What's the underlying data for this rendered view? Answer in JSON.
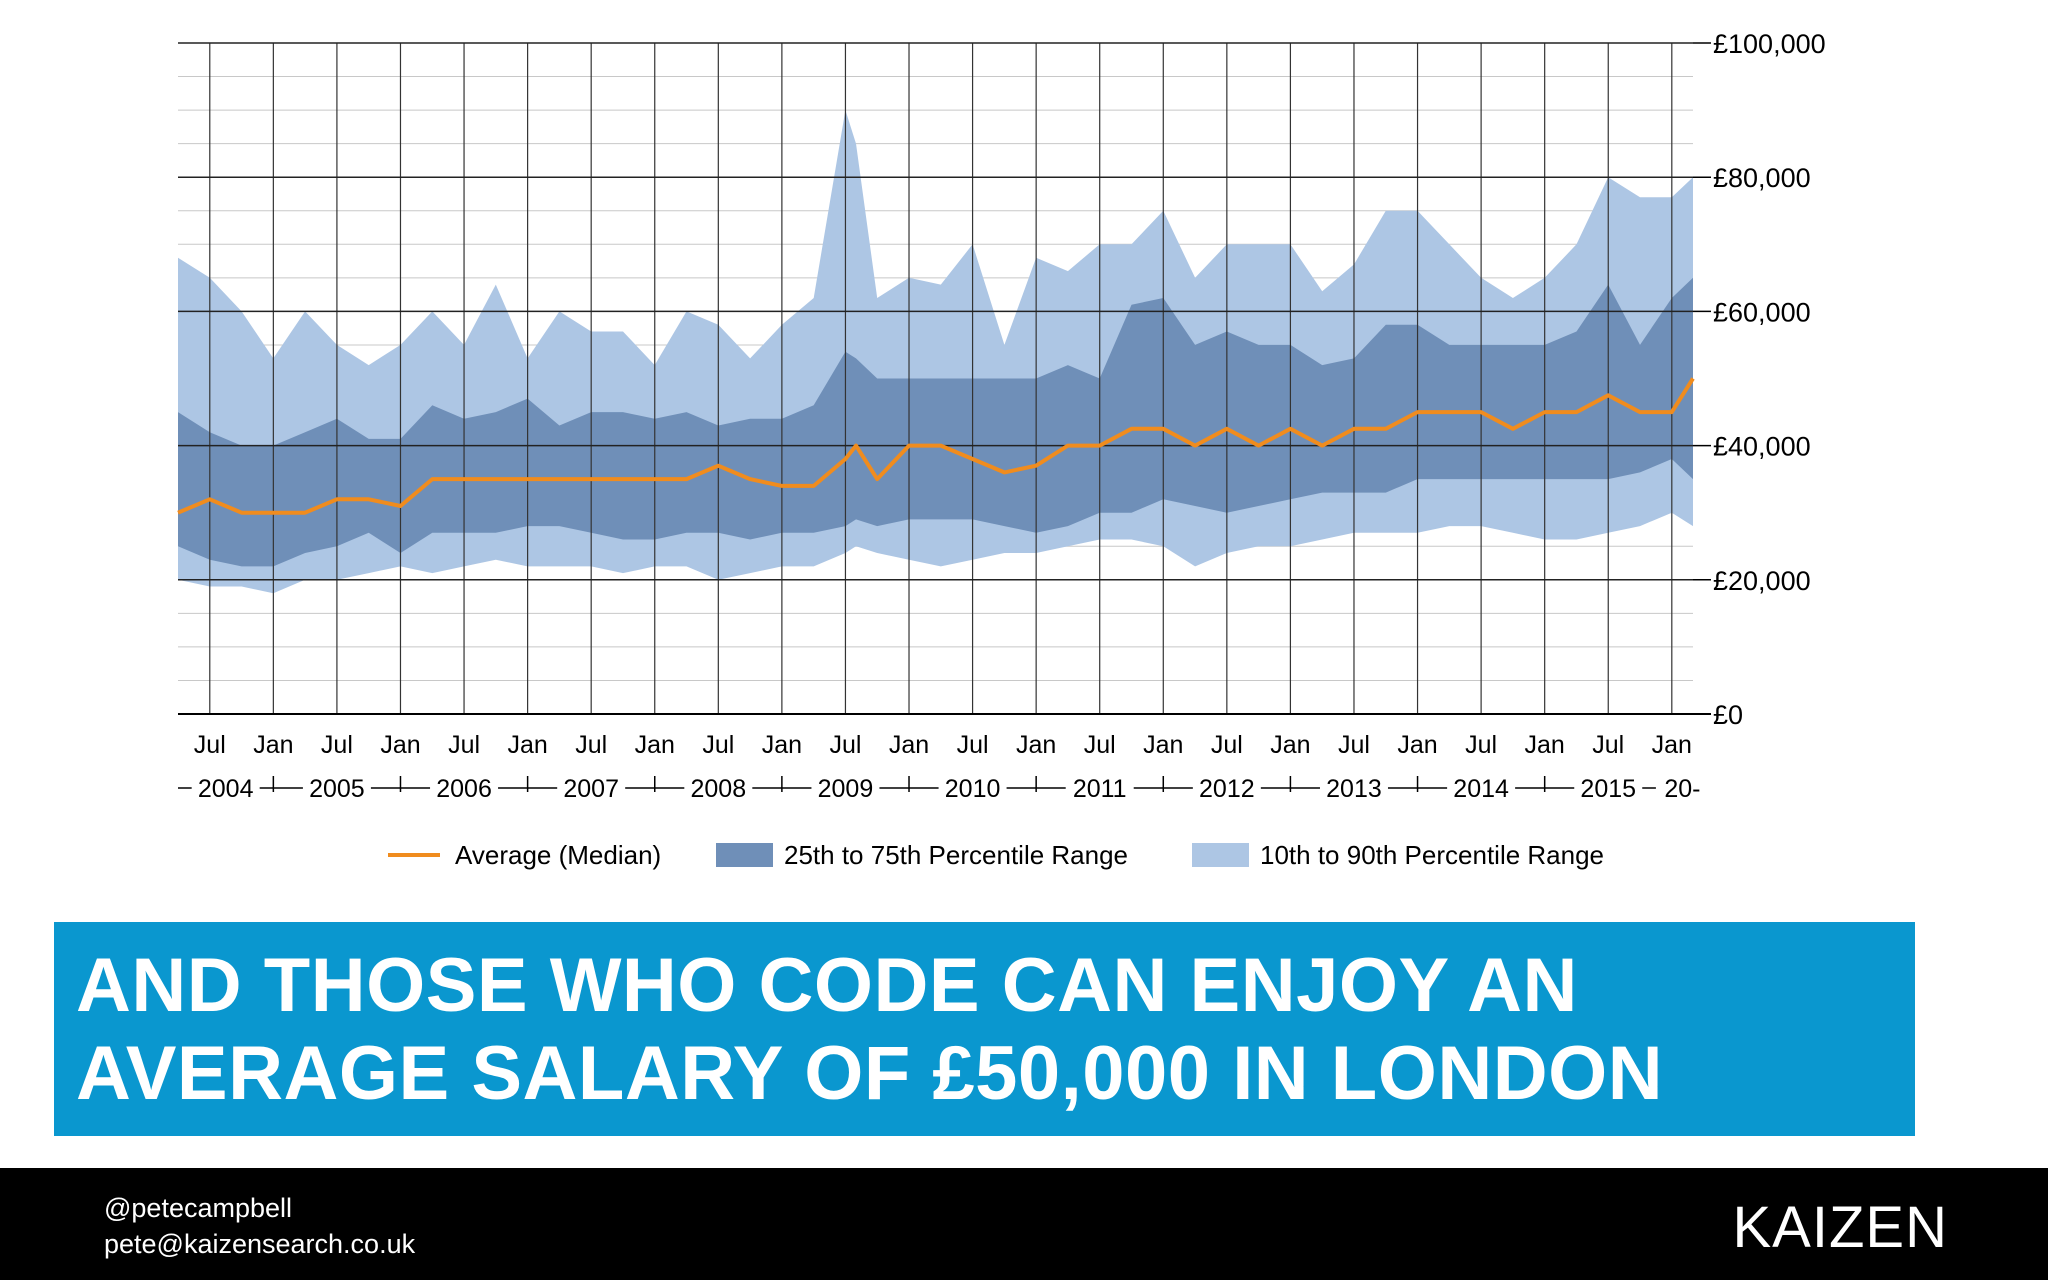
{
  "chart_data": {
    "type": "area",
    "ylim": [
      0,
      100000
    ],
    "y_ticks": [
      "£0",
      "£20,000",
      "£40,000",
      "£60,000",
      "£80,000",
      "£100,000"
    ],
    "y_tick_values": [
      0,
      20000,
      40000,
      60000,
      80000,
      100000
    ],
    "x_range": [
      "2004-04",
      "2016-03"
    ],
    "x_month_labels": [
      "Jul",
      "Jan",
      "Jul",
      "Jan",
      "Jul",
      "Jan",
      "Jul",
      "Jan",
      "Jul",
      "Jan",
      "Jul",
      "Jan",
      "Jul",
      "Jan",
      "Jul",
      "Jan",
      "Jul",
      "Jan",
      "Jul",
      "Jan",
      "Jul",
      "Jan",
      "Jul",
      "Jan"
    ],
    "x_years": [
      "2004",
      "2005",
      "2006",
      "2007",
      "2008",
      "2009",
      "2010",
      "2011",
      "2012",
      "2013",
      "2014",
      "2015",
      "20-"
    ],
    "grid": true,
    "legend_position": "bottom",
    "legend": [
      {
        "label": "Average (Median)",
        "kind": "line",
        "color": "#f08c1e"
      },
      {
        "label": "25th to 75th Percentile Range",
        "kind": "band",
        "color": "#6f8fb8"
      },
      {
        "label": "10th to 90th Percentile Range",
        "kind": "band",
        "color": "#adc6e4"
      }
    ],
    "x": [
      "2004-04",
      "2004-07",
      "2004-10",
      "2005-01",
      "2005-04",
      "2005-07",
      "2005-10",
      "2006-01",
      "2006-04",
      "2006-07",
      "2006-10",
      "2007-01",
      "2007-04",
      "2007-07",
      "2007-10",
      "2008-01",
      "2008-04",
      "2008-07",
      "2008-10",
      "2009-01",
      "2009-04",
      "2009-07",
      "2009-08",
      "2009-10",
      "2010-01",
      "2010-04",
      "2010-07",
      "2010-10",
      "2011-01",
      "2011-04",
      "2011-07",
      "2011-10",
      "2012-01",
      "2012-04",
      "2012-07",
      "2012-10",
      "2013-01",
      "2013-04",
      "2013-07",
      "2013-10",
      "2014-01",
      "2014-04",
      "2014-07",
      "2014-10",
      "2015-01",
      "2015-04",
      "2015-07",
      "2015-10",
      "2016-01",
      "2016-03"
    ],
    "series": [
      {
        "name": "10th to 90th Percentile Range",
        "lower": [
          20000,
          19000,
          19000,
          18000,
          20000,
          20000,
          21000,
          22000,
          21000,
          22000,
          23000,
          22000,
          22000,
          22000,
          21000,
          22000,
          22000,
          20000,
          21000,
          22000,
          22000,
          24000,
          25000,
          24000,
          23000,
          22000,
          23000,
          24000,
          24000,
          25000,
          26000,
          26000,
          25000,
          22000,
          24000,
          25000,
          25000,
          26000,
          27000,
          27000,
          27000,
          28000,
          28000,
          27000,
          26000,
          26000,
          27000,
          28000,
          30000,
          28000
        ],
        "upper": [
          68000,
          65000,
          60000,
          53000,
          60000,
          55000,
          52000,
          55000,
          60000,
          55000,
          64000,
          53000,
          60000,
          57000,
          57000,
          52000,
          60000,
          58000,
          53000,
          58000,
          62000,
          90000,
          85000,
          62000,
          65000,
          64000,
          70000,
          55000,
          68000,
          66000,
          70000,
          70000,
          75000,
          65000,
          70000,
          70000,
          70000,
          63000,
          67000,
          75000,
          75000,
          70000,
          65000,
          62000,
          65000,
          70000,
          80000,
          77000,
          77000,
          80000
        ]
      },
      {
        "name": "25th to 75th Percentile Range",
        "lower": [
          25000,
          23000,
          22000,
          22000,
          24000,
          25000,
          27000,
          24000,
          27000,
          27000,
          27000,
          28000,
          28000,
          27000,
          26000,
          26000,
          27000,
          27000,
          26000,
          27000,
          27000,
          28000,
          29000,
          28000,
          29000,
          29000,
          29000,
          28000,
          27000,
          28000,
          30000,
          30000,
          32000,
          31000,
          30000,
          31000,
          32000,
          33000,
          33000,
          33000,
          35000,
          35000,
          35000,
          35000,
          35000,
          35000,
          35000,
          36000,
          38000,
          35000
        ],
        "upper": [
          45000,
          42000,
          40000,
          40000,
          42000,
          44000,
          41000,
          41000,
          46000,
          44000,
          45000,
          47000,
          43000,
          45000,
          45000,
          44000,
          45000,
          43000,
          44000,
          44000,
          46000,
          54000,
          53000,
          50000,
          50000,
          50000,
          50000,
          50000,
          50000,
          52000,
          50000,
          61000,
          62000,
          55000,
          57000,
          55000,
          55000,
          52000,
          53000,
          58000,
          58000,
          55000,
          55000,
          55000,
          55000,
          57000,
          64000,
          55000,
          62000,
          65000
        ]
      },
      {
        "name": "Average (Median)",
        "values": [
          30000,
          32000,
          30000,
          30000,
          30000,
          32000,
          32000,
          31000,
          35000,
          35000,
          35000,
          35000,
          35000,
          35000,
          35000,
          35000,
          35000,
          37000,
          35000,
          34000,
          34000,
          38000,
          40000,
          35000,
          40000,
          40000,
          38000,
          36000,
          37000,
          40000,
          40000,
          42500,
          42500,
          40000,
          42500,
          40000,
          42500,
          40000,
          42500,
          42500,
          45000,
          45000,
          45000,
          42500,
          45000,
          45000,
          47500,
          45000,
          45000,
          50000
        ]
      }
    ]
  },
  "headline": {
    "line1": "AND THOSE WHO CODE CAN ENJOY AN",
    "line2": "AVERAGE SALARY OF £50,000 IN LONDON"
  },
  "footer": {
    "twitter": "@petecampbell",
    "email": "pete@kaizensearch.co.uk",
    "logo": "KAIZEN"
  }
}
